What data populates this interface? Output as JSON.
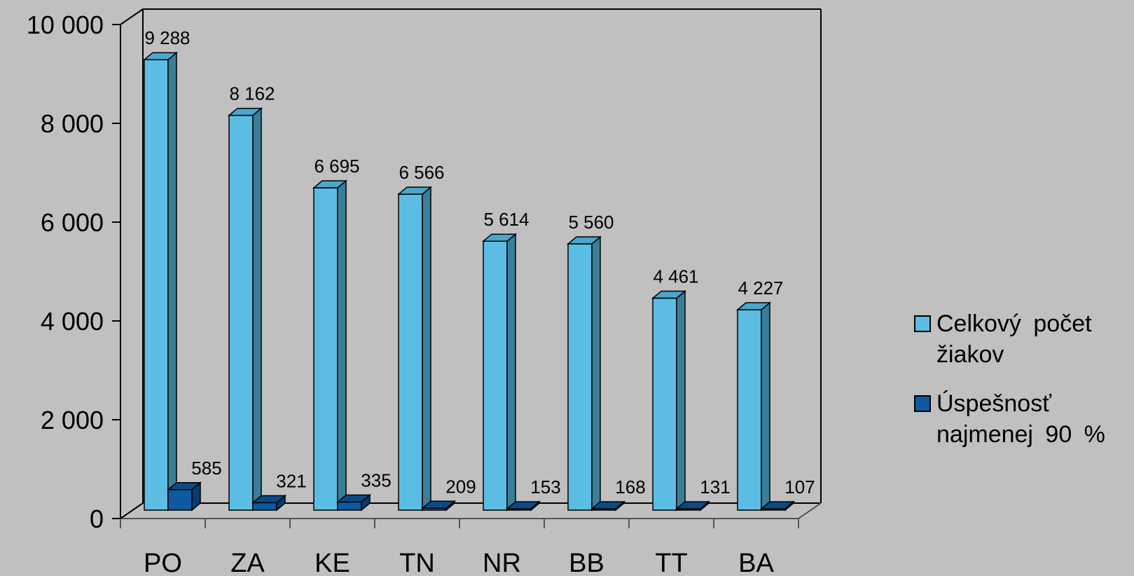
{
  "chart_data": {
    "type": "bar",
    "categories": [
      "PO",
      "ZA",
      "KE",
      "TN",
      "NR",
      "BB",
      "TT",
      "BA"
    ],
    "series": [
      {
        "name": "Celkový počet žiakov",
        "values": [
          9288,
          8162,
          6695,
          6566,
          5614,
          5560,
          4461,
          4227
        ],
        "labels": [
          "9 288",
          "8 162",
          "6 695",
          "6 566",
          "5 614",
          "5 560",
          "4 461",
          "4 227"
        ],
        "color": "#5bbde4",
        "side_color": "#3a7f9a",
        "top_color": "#4aa6cc"
      },
      {
        "name": "Úspešnosť najmenej 90 %",
        "values": [
          585,
          321,
          335,
          209,
          153,
          168,
          131,
          107
        ],
        "labels": [
          "585",
          "321",
          "335",
          "209",
          "153",
          "168",
          "131",
          "107"
        ],
        "color": "#0d5aa0",
        "side_color": "#063c6e",
        "top_color": "#0a4a85"
      }
    ],
    "yticks": [
      0,
      2000,
      4000,
      6000,
      8000,
      10000
    ],
    "ytick_labels": [
      "0",
      "2 000",
      "4 000",
      "6 000",
      "8 000",
      "10 000"
    ],
    "ylim": [
      0,
      10000
    ],
    "grid": false,
    "legend_position": "right"
  }
}
